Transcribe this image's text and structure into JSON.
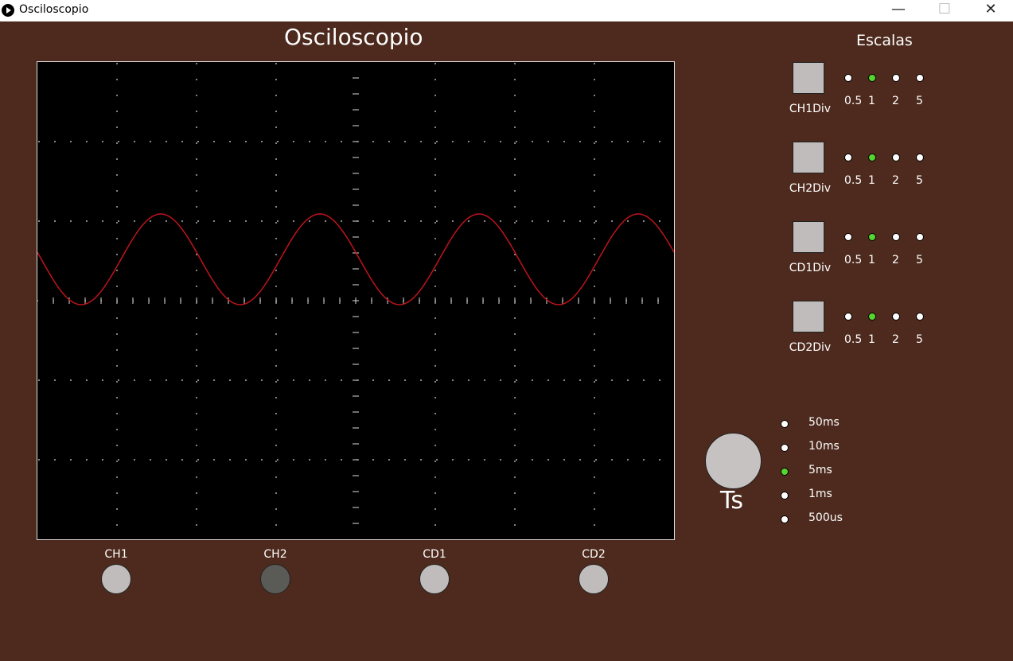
{
  "window": {
    "title": "Osciloscopio",
    "minimize": "—",
    "maximize": "☐",
    "close": "✕"
  },
  "page": {
    "title": "Osciloscopio"
  },
  "channels": [
    {
      "label": "CH1",
      "color": "#c0bcbc"
    },
    {
      "label": "CH2",
      "color": "#5a5a56"
    },
    {
      "label": "CD1",
      "color": "#c0bcbc"
    },
    {
      "label": "CD2",
      "color": "#c0bcbc"
    }
  ],
  "scales": {
    "title": "Escalas",
    "options": [
      "0.5",
      "1",
      "2",
      "5"
    ],
    "rows": [
      {
        "label": "CH1Div",
        "selected": "1"
      },
      {
        "label": "CH2Div",
        "selected": "1"
      },
      {
        "label": "CD1Div",
        "selected": "1"
      },
      {
        "label": "CD2Div",
        "selected": "1"
      }
    ]
  },
  "timebase": {
    "label": "Ts",
    "options": [
      "50ms",
      "10ms",
      "5ms",
      "1ms",
      "500us"
    ],
    "selected": "5ms"
  },
  "colors": {
    "background": "#4d2a1d",
    "screen": "#000000",
    "trace": "#c0141a",
    "selected_indicator": "#57d52f"
  }
}
